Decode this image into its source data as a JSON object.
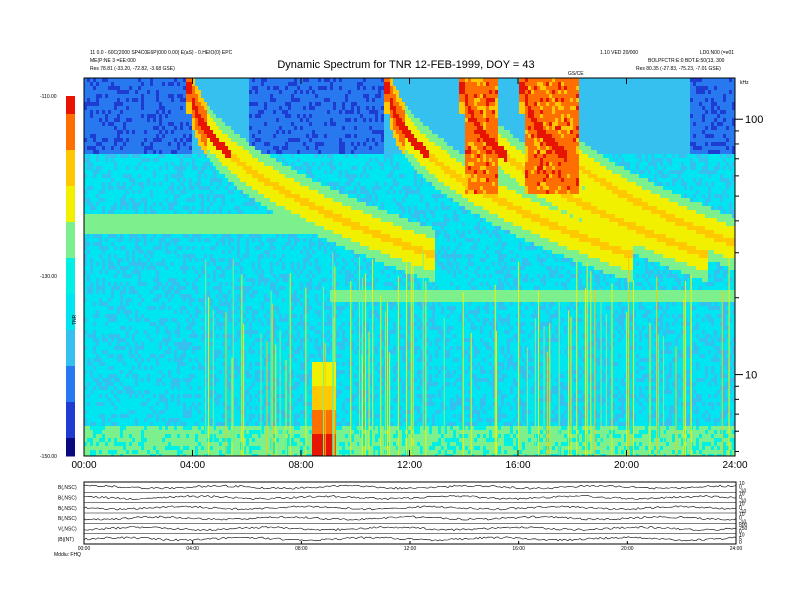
{
  "header": {
    "title": "Dynamic Spectrum for TNR 12-FEB-1999, DOY = 43",
    "left_line1": "11 0.0 - 60C(2000 SP4C0E6P(000 0.00) E(aS) - 0.HEIO(0) EPC",
    "left_line2": "ME(P:NE 3 =EE:000",
    "left_line3": "Res 78.81 (-33.20, -72.82, -3.68 GSE)",
    "right_line1": "1.10 VED 20/000",
    "right_line2": "LD0.N00 (=e01",
    "right_line3": "BOLPFCTR:E:0 BDT.E:50(13, 300",
    "right_line4": "Res 80.35 (-27.83, -75.23, -7.01 GSE)",
    "mid_tag": "GS/CE",
    "freq_unit": "kHz",
    "colorbar_unit": "TNR",
    "bottom_note": "Mddiu: FHQ"
  },
  "colors": {
    "spectrum": [
      "#0a0a80",
      "#1e3cd2",
      "#2878f0",
      "#35c0f0",
      "#00e6f0",
      "#00f0e6",
      "#7cf08c",
      "#f0f000",
      "#ffc800",
      "#ff6e00",
      "#e61400"
    ]
  },
  "chart_data": [
    {
      "type": "heatmap",
      "title": "Dynamic Spectrum for TNR 12-FEB-1999, DOY = 43",
      "x_ticks": [
        "00:00",
        "04:00",
        "08:00",
        "12:00",
        "16:00",
        "20:00",
        "24:00"
      ],
      "x_range_hours": [
        0,
        24
      ],
      "y_scale": "log",
      "y_unit": "kHz",
      "y_ticks": [
        "100",
        "10"
      ],
      "y_range_khz": [
        4.8,
        145
      ],
      "colorbar": {
        "label": "TNR",
        "ticks": [
          "-110.00",
          "-130.00",
          "-150.00"
        ],
        "range": [
          -150,
          -110
        ]
      },
      "background_level": "cyan (about -135)",
      "features": [
        {
          "name": "type III burst",
          "start_hour": 3.9,
          "peak": "red",
          "drift": "high to low frequency"
        },
        {
          "name": "type III burst",
          "start_hour": 11.2,
          "peak": "red",
          "drift": "high to low frequency"
        },
        {
          "name": "type III burst",
          "start_hour": 14.0,
          "peak": "red",
          "drift": "high to low frequency"
        },
        {
          "name": "type III burst",
          "start_hour": 16.2,
          "peak": "red",
          "drift": "high to low frequency"
        },
        {
          "name": "low-frequency enhancement",
          "start_hour": 8.4,
          "end_hour": 9.2,
          "peak": "red"
        }
      ]
    },
    {
      "type": "line",
      "panels": [
        {
          "label": "B(,NSC)",
          "right_ticks": [
            "10",
            "0",
            "-10"
          ]
        },
        {
          "label": "B(,NSC)",
          "right_ticks": [
            "10",
            "0",
            "-10"
          ]
        },
        {
          "label": "B(,NSC)",
          "right_ticks": [
            "10",
            "0",
            "-10"
          ]
        },
        {
          "label": "B(,NSC)",
          "right_ticks": [
            "10",
            "0",
            "-10"
          ]
        },
        {
          "label": "V(,NSC)",
          "right_ticks": [
            "500",
            "250",
            "0"
          ]
        },
        {
          "label": "|B|(NT)",
          "right_ticks": [
            "10",
            "5",
            "0"
          ]
        }
      ],
      "x_ticks": [
        "00:00",
        "04:00",
        "08:00",
        "12:00",
        "16:00",
        "20:00",
        "24:00"
      ]
    }
  ]
}
